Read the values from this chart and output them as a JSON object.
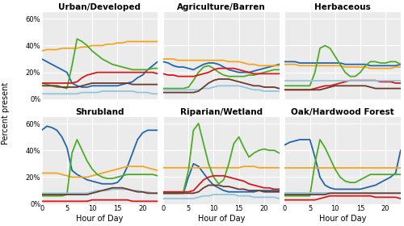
{
  "titles": [
    "Urban/Developed",
    "Agriculture/Barren",
    "Herbaceous",
    "Shrubland",
    "Riparian/Wetland",
    "Oak/Hardwood Forest"
  ],
  "xlabel": "Hour of Day",
  "ylabel": "Percent present",
  "ylim": [
    0,
    0.65
  ],
  "hours": [
    0,
    1,
    2,
    3,
    4,
    5,
    6,
    7,
    8,
    9,
    10,
    11,
    12,
    13,
    14,
    15,
    16,
    17,
    18,
    19,
    20,
    21,
    22,
    23
  ],
  "colors": [
    "#2166ac",
    "#f4a620",
    "#4dac26",
    "#d7191c",
    "#92c5de",
    "#6b3a2a"
  ],
  "series": {
    "Urban/Developed": [
      [
        0.3,
        0.28,
        0.26,
        0.24,
        0.22,
        0.2,
        0.12,
        0.1,
        0.09,
        0.09,
        0.1,
        0.1,
        0.1,
        0.1,
        0.1,
        0.1,
        0.11,
        0.12,
        0.13,
        0.16,
        0.18,
        0.22,
        0.25,
        0.28
      ],
      [
        0.36,
        0.37,
        0.37,
        0.37,
        0.38,
        0.38,
        0.38,
        0.38,
        0.39,
        0.39,
        0.4,
        0.4,
        0.4,
        0.41,
        0.41,
        0.42,
        0.42,
        0.43,
        0.43,
        0.43,
        0.43,
        0.43,
        0.43,
        0.43
      ],
      [
        0.12,
        0.11,
        0.1,
        0.09,
        0.09,
        0.08,
        0.25,
        0.45,
        0.43,
        0.4,
        0.36,
        0.33,
        0.3,
        0.28,
        0.26,
        0.25,
        0.24,
        0.23,
        0.22,
        0.22,
        0.22,
        0.22,
        0.23,
        0.23
      ],
      [
        0.12,
        0.12,
        0.12,
        0.12,
        0.12,
        0.12,
        0.12,
        0.13,
        0.16,
        0.18,
        0.19,
        0.2,
        0.2,
        0.2,
        0.2,
        0.2,
        0.2,
        0.2,
        0.2,
        0.2,
        0.2,
        0.2,
        0.2,
        0.19
      ],
      [
        0.04,
        0.04,
        0.04,
        0.04,
        0.04,
        0.04,
        0.04,
        0.04,
        0.05,
        0.05,
        0.05,
        0.05,
        0.06,
        0.06,
        0.06,
        0.06,
        0.06,
        0.06,
        0.06,
        0.05,
        0.05,
        0.05,
        0.04,
        0.04
      ],
      [
        0.1,
        0.1,
        0.1,
        0.1,
        0.09,
        0.09,
        0.09,
        0.09,
        0.1,
        0.11,
        0.12,
        0.12,
        0.12,
        0.12,
        0.12,
        0.12,
        0.12,
        0.12,
        0.11,
        0.11,
        0.11,
        0.11,
        0.11,
        0.11
      ]
    ],
    "Agriculture/Barren": [
      [
        0.28,
        0.27,
        0.25,
        0.24,
        0.24,
        0.23,
        0.22,
        0.24,
        0.26,
        0.27,
        0.27,
        0.26,
        0.24,
        0.22,
        0.21,
        0.2,
        0.2,
        0.2,
        0.21,
        0.22,
        0.23,
        0.24,
        0.25,
        0.26
      ],
      [
        0.3,
        0.3,
        0.3,
        0.29,
        0.29,
        0.29,
        0.29,
        0.29,
        0.29,
        0.29,
        0.29,
        0.29,
        0.29,
        0.28,
        0.28,
        0.28,
        0.27,
        0.26,
        0.26,
        0.25,
        0.25,
        0.25,
        0.25,
        0.25
      ],
      [
        0.08,
        0.08,
        0.08,
        0.08,
        0.08,
        0.09,
        0.14,
        0.2,
        0.24,
        0.25,
        0.23,
        0.2,
        0.18,
        0.17,
        0.17,
        0.17,
        0.17,
        0.18,
        0.18,
        0.19,
        0.2,
        0.21,
        0.22,
        0.22
      ],
      [
        0.19,
        0.18,
        0.18,
        0.17,
        0.17,
        0.17,
        0.17,
        0.18,
        0.19,
        0.2,
        0.22,
        0.23,
        0.23,
        0.23,
        0.23,
        0.22,
        0.21,
        0.2,
        0.19,
        0.19,
        0.19,
        0.19,
        0.19,
        0.19
      ],
      [
        0.07,
        0.07,
        0.07,
        0.07,
        0.07,
        0.07,
        0.07,
        0.07,
        0.08,
        0.08,
        0.09,
        0.1,
        0.1,
        0.1,
        0.1,
        0.1,
        0.09,
        0.08,
        0.07,
        0.07,
        0.06,
        0.06,
        0.06,
        0.06
      ],
      [
        0.05,
        0.05,
        0.05,
        0.05,
        0.05,
        0.05,
        0.05,
        0.06,
        0.09,
        0.12,
        0.14,
        0.15,
        0.15,
        0.15,
        0.14,
        0.13,
        0.12,
        0.11,
        0.1,
        0.1,
        0.09,
        0.09,
        0.09,
        0.08
      ]
    ],
    "Herbaceous": [
      [
        0.28,
        0.28,
        0.28,
        0.27,
        0.27,
        0.27,
        0.27,
        0.27,
        0.27,
        0.27,
        0.27,
        0.27,
        0.26,
        0.26,
        0.26,
        0.26,
        0.26,
        0.25,
        0.25,
        0.25,
        0.25,
        0.25,
        0.25,
        0.26
      ],
      [
        0.26,
        0.26,
        0.26,
        0.25,
        0.25,
        0.25,
        0.25,
        0.25,
        0.25,
        0.25,
        0.25,
        0.25,
        0.24,
        0.24,
        0.24,
        0.24,
        0.24,
        0.23,
        0.23,
        0.23,
        0.23,
        0.23,
        0.24,
        0.24
      ],
      [
        0.1,
        0.1,
        0.1,
        0.1,
        0.1,
        0.1,
        0.2,
        0.38,
        0.4,
        0.38,
        0.32,
        0.26,
        0.2,
        0.17,
        0.17,
        0.2,
        0.25,
        0.28,
        0.28,
        0.27,
        0.27,
        0.28,
        0.28,
        0.26
      ],
      [
        0.07,
        0.07,
        0.07,
        0.07,
        0.07,
        0.07,
        0.08,
        0.09,
        0.1,
        0.1,
        0.11,
        0.12,
        0.13,
        0.14,
        0.14,
        0.14,
        0.14,
        0.14,
        0.14,
        0.13,
        0.13,
        0.13,
        0.12,
        0.12
      ],
      [
        0.14,
        0.14,
        0.14,
        0.14,
        0.14,
        0.14,
        0.14,
        0.14,
        0.14,
        0.14,
        0.14,
        0.14,
        0.14,
        0.14,
        0.14,
        0.14,
        0.14,
        0.14,
        0.14,
        0.14,
        0.14,
        0.14,
        0.14,
        0.14
      ],
      [
        0.07,
        0.07,
        0.07,
        0.07,
        0.07,
        0.07,
        0.07,
        0.07,
        0.08,
        0.09,
        0.1,
        0.1,
        0.1,
        0.1,
        0.1,
        0.1,
        0.1,
        0.09,
        0.08,
        0.08,
        0.08,
        0.08,
        0.08,
        0.08
      ]
    ],
    "Shrubland": [
      [
        0.55,
        0.58,
        0.57,
        0.55,
        0.5,
        0.42,
        0.25,
        0.22,
        0.2,
        0.18,
        0.17,
        0.16,
        0.15,
        0.15,
        0.15,
        0.16,
        0.2,
        0.28,
        0.38,
        0.48,
        0.53,
        0.55,
        0.55,
        0.55
      ],
      [
        0.23,
        0.23,
        0.23,
        0.23,
        0.22,
        0.21,
        0.2,
        0.2,
        0.2,
        0.2,
        0.21,
        0.22,
        0.23,
        0.24,
        0.25,
        0.26,
        0.27,
        0.28,
        0.28,
        0.28,
        0.28,
        0.27,
        0.26,
        0.25
      ],
      [
        0.06,
        0.06,
        0.06,
        0.06,
        0.06,
        0.07,
        0.38,
        0.48,
        0.4,
        0.32,
        0.26,
        0.22,
        0.2,
        0.19,
        0.19,
        0.2,
        0.21,
        0.22,
        0.22,
        0.22,
        0.22,
        0.22,
        0.22,
        0.21
      ],
      [
        0.02,
        0.02,
        0.02,
        0.02,
        0.02,
        0.02,
        0.02,
        0.02,
        0.02,
        0.02,
        0.03,
        0.03,
        0.03,
        0.03,
        0.03,
        0.03,
        0.03,
        0.03,
        0.02,
        0.02,
        0.02,
        0.02,
        0.02,
        0.02
      ],
      [
        0.08,
        0.08,
        0.08,
        0.08,
        0.08,
        0.08,
        0.08,
        0.08,
        0.08,
        0.08,
        0.09,
        0.1,
        0.1,
        0.1,
        0.11,
        0.11,
        0.11,
        0.11,
        0.1,
        0.1,
        0.09,
        0.09,
        0.08,
        0.08
      ],
      [
        0.07,
        0.07,
        0.07,
        0.07,
        0.07,
        0.07,
        0.07,
        0.07,
        0.07,
        0.07,
        0.08,
        0.09,
        0.1,
        0.11,
        0.12,
        0.12,
        0.12,
        0.11,
        0.1,
        0.09,
        0.09,
        0.08,
        0.08,
        0.08
      ]
    ],
    "Riparian/Wetland": [
      [
        0.08,
        0.08,
        0.08,
        0.08,
        0.08,
        0.2,
        0.3,
        0.28,
        0.23,
        0.18,
        0.14,
        0.12,
        0.1,
        0.09,
        0.09,
        0.09,
        0.09,
        0.09,
        0.09,
        0.1,
        0.1,
        0.1,
        0.1,
        0.1
      ],
      [
        0.27,
        0.27,
        0.27,
        0.27,
        0.27,
        0.27,
        0.27,
        0.27,
        0.27,
        0.27,
        0.27,
        0.27,
        0.27,
        0.27,
        0.27,
        0.27,
        0.28,
        0.28,
        0.28,
        0.27,
        0.27,
        0.27,
        0.27,
        0.27
      ],
      [
        0.08,
        0.08,
        0.08,
        0.08,
        0.09,
        0.25,
        0.55,
        0.6,
        0.45,
        0.3,
        0.2,
        0.15,
        0.18,
        0.3,
        0.45,
        0.5,
        0.42,
        0.35,
        0.38,
        0.4,
        0.41,
        0.4,
        0.4,
        0.38
      ],
      [
        0.09,
        0.09,
        0.09,
        0.09,
        0.09,
        0.09,
        0.1,
        0.14,
        0.18,
        0.2,
        0.21,
        0.21,
        0.21,
        0.2,
        0.19,
        0.18,
        0.17,
        0.15,
        0.14,
        0.13,
        0.12,
        0.12,
        0.11,
        0.11
      ],
      [
        0.04,
        0.04,
        0.04,
        0.04,
        0.04,
        0.04,
        0.04,
        0.05,
        0.06,
        0.06,
        0.07,
        0.07,
        0.07,
        0.07,
        0.07,
        0.06,
        0.06,
        0.06,
        0.05,
        0.05,
        0.05,
        0.05,
        0.05,
        0.04
      ],
      [
        0.08,
        0.08,
        0.08,
        0.08,
        0.08,
        0.08,
        0.08,
        0.09,
        0.12,
        0.14,
        0.14,
        0.14,
        0.13,
        0.13,
        0.12,
        0.11,
        0.11,
        0.1,
        0.1,
        0.1,
        0.09,
        0.09,
        0.09,
        0.09
      ]
    ],
    "Oak/Hardwood Forest": [
      [
        0.44,
        0.46,
        0.47,
        0.48,
        0.48,
        0.48,
        0.35,
        0.2,
        0.14,
        0.12,
        0.11,
        0.11,
        0.11,
        0.11,
        0.11,
        0.11,
        0.12,
        0.13,
        0.14,
        0.16,
        0.18,
        0.2,
        0.23,
        0.4
      ],
      [
        0.27,
        0.27,
        0.27,
        0.27,
        0.27,
        0.27,
        0.27,
        0.27,
        0.27,
        0.27,
        0.27,
        0.27,
        0.27,
        0.27,
        0.27,
        0.27,
        0.27,
        0.27,
        0.27,
        0.27,
        0.27,
        0.27,
        0.27,
        0.27
      ],
      [
        0.06,
        0.06,
        0.06,
        0.06,
        0.06,
        0.06,
        0.3,
        0.48,
        0.42,
        0.34,
        0.26,
        0.2,
        0.17,
        0.16,
        0.16,
        0.18,
        0.2,
        0.22,
        0.22,
        0.22,
        0.22,
        0.22,
        0.22,
        0.22
      ],
      [
        0.03,
        0.03,
        0.03,
        0.03,
        0.03,
        0.03,
        0.03,
        0.04,
        0.05,
        0.06,
        0.06,
        0.06,
        0.06,
        0.06,
        0.06,
        0.06,
        0.06,
        0.06,
        0.05,
        0.05,
        0.05,
        0.05,
        0.05,
        0.04
      ],
      [
        0.08,
        0.08,
        0.08,
        0.08,
        0.08,
        0.08,
        0.08,
        0.08,
        0.08,
        0.08,
        0.08,
        0.08,
        0.08,
        0.08,
        0.08,
        0.08,
        0.08,
        0.08,
        0.08,
        0.08,
        0.08,
        0.08,
        0.08,
        0.08
      ],
      [
        0.07,
        0.07,
        0.07,
        0.07,
        0.07,
        0.07,
        0.07,
        0.07,
        0.07,
        0.08,
        0.08,
        0.08,
        0.08,
        0.08,
        0.08,
        0.08,
        0.08,
        0.08,
        0.08,
        0.08,
        0.08,
        0.08,
        0.08,
        0.08
      ]
    ]
  },
  "bg_color": "#ebebeb",
  "line_width": 1.3,
  "title_fontsize": 7.5,
  "tick_fontsize": 6,
  "label_fontsize": 7
}
